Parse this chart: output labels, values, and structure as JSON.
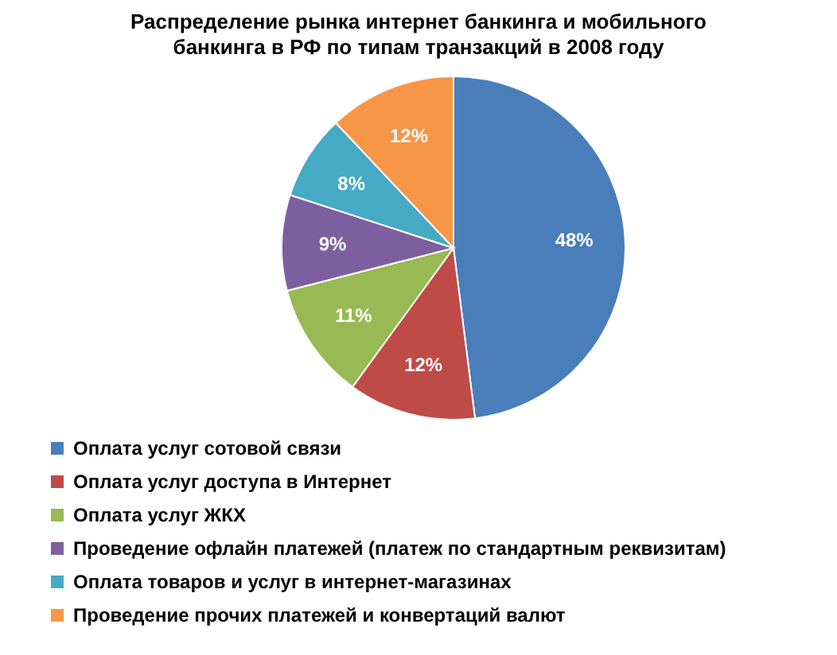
{
  "chart_data": {
    "type": "pie",
    "title": "Распределение рынка интернет банкинга и мобильного банкинга в РФ по типам транзакций в 2008 году",
    "categories": [
      "Оплата услуг сотовой связи",
      "Оплата услуг доступа в Интернет",
      "Оплата услуг ЖКХ",
      "Проведение офлайн платежей (платеж по стандартным реквизитам)",
      "Оплата товаров и услуг в интернет-магазинах",
      "Проведение прочих платежей и конвертаций валют"
    ],
    "values": [
      48,
      12,
      11,
      9,
      8,
      12
    ],
    "value_labels": [
      "48%",
      "12%",
      "11%",
      "9%",
      "8%",
      "12%"
    ],
    "colors": [
      "#4a7ebb",
      "#be4b48",
      "#98b954",
      "#7d5fa0",
      "#46aac5",
      "#f79646"
    ],
    "legend": "bottom"
  }
}
